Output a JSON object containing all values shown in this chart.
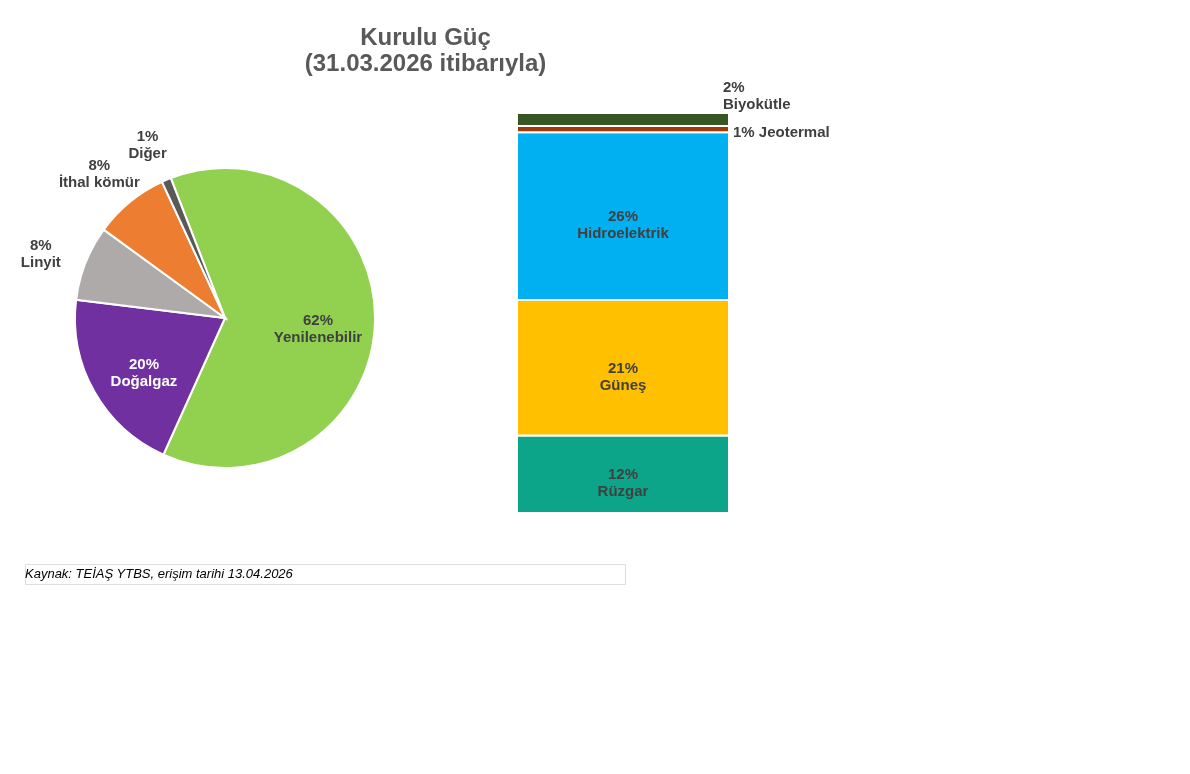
{
  "chart_data": [
    {
      "type": "pie",
      "title": [
        "Kurulu Güç",
        "(31.03.2026 itibarıyla)"
      ],
      "categories": [
        "Yenilenebilir",
        "Doğalgaz",
        "Linyit",
        "İthal kömür",
        "Diğer"
      ],
      "values": [
        62,
        20,
        8,
        8,
        1
      ],
      "value_labels": [
        "62%",
        "20%",
        "8%",
        "8%",
        "1%"
      ],
      "colors": [
        "#92d050",
        "#7030a0",
        "#aeaaaa",
        "#ed7d31",
        "#595959"
      ],
      "annotations": [
        "Kaynak: TEİAŞ YTBS, erişim tarihi 13.04.2026"
      ]
    },
    {
      "type": "bar",
      "stacked": true,
      "categories": [
        null
      ],
      "series": [
        {
          "name": "Rüzgar",
          "color": "#0ca58a",
          "values": [
            12
          ],
          "value_labels": [
            "12%"
          ]
        },
        {
          "name": "Güneş",
          "color": "#ffc000",
          "values": [
            21
          ],
          "value_labels": [
            "21%"
          ]
        },
        {
          "name": "Hidroelektrik",
          "color": "#00b0f0",
          "values": [
            26
          ],
          "value_labels": [
            "26%"
          ]
        },
        {
          "name": "Jeotermal",
          "color": "#9c3a0c",
          "values": [
            1
          ],
          "value_labels": [
            "1%"
          ]
        },
        {
          "name": "Biyokütle",
          "color": "#375623",
          "values": [
            2
          ],
          "value_labels": [
            "2%"
          ]
        }
      ]
    }
  ]
}
